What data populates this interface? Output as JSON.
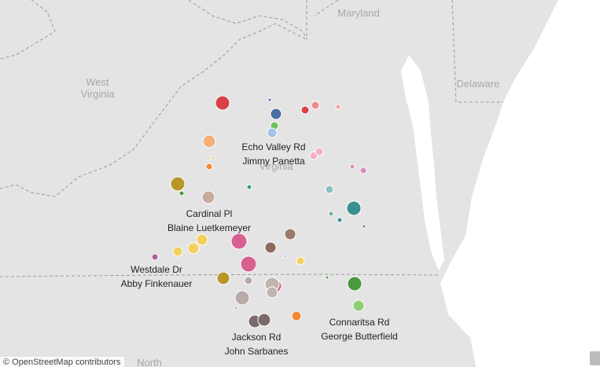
{
  "regions": [
    {
      "lines": [
        "Maryland"
      ]
    },
    {
      "lines": [
        "West",
        "Virginia"
      ]
    },
    {
      "lines": [
        "Delaware"
      ]
    },
    {
      "lines": [
        "Virginia"
      ]
    },
    {
      "lines": [
        "North"
      ]
    }
  ],
  "annotations": [
    {
      "street": "Echo Valley Rd",
      "name": "Jimmy Panetta"
    },
    {
      "street": "Cardinal Pl",
      "name": "Blaine Luetkemeyer"
    },
    {
      "street": "Westdale Dr",
      "name": "Abby Finkenauer"
    },
    {
      "street": "Jackson Rd",
      "name": "John Sarbanes"
    },
    {
      "street": "Connaritsa Rd",
      "name": "George Butterfield"
    }
  ],
  "attribution": "© OpenStreetMap contributors"
}
